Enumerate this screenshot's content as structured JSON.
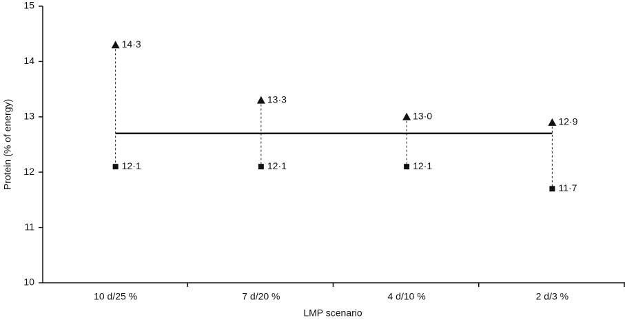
{
  "chart_data": {
    "type": "dot_range",
    "x_label": "LMP scenario",
    "y_label": "Protein (% of energy)",
    "categories": [
      "10 d/25 %",
      "7 d/20 %",
      "4 d/10 %",
      "2 d/3 %"
    ],
    "series": [
      {
        "marker": "triangle",
        "color": "#111111",
        "values": [
          14.3,
          13.3,
          13.0,
          12.9
        ],
        "value_labels": [
          "14·3",
          "13·3",
          "13·0",
          "12·9"
        ]
      },
      {
        "marker": "square",
        "color": "#111111",
        "values": [
          12.1,
          12.1,
          12.1,
          11.7
        ],
        "value_labels": [
          "12·1",
          "12·1",
          "12·1",
          "11·7"
        ]
      }
    ],
    "reference_line": 12.7,
    "ylim": [
      10,
      15
    ],
    "yticks": [
      10,
      11,
      12,
      13,
      14,
      15
    ]
  }
}
